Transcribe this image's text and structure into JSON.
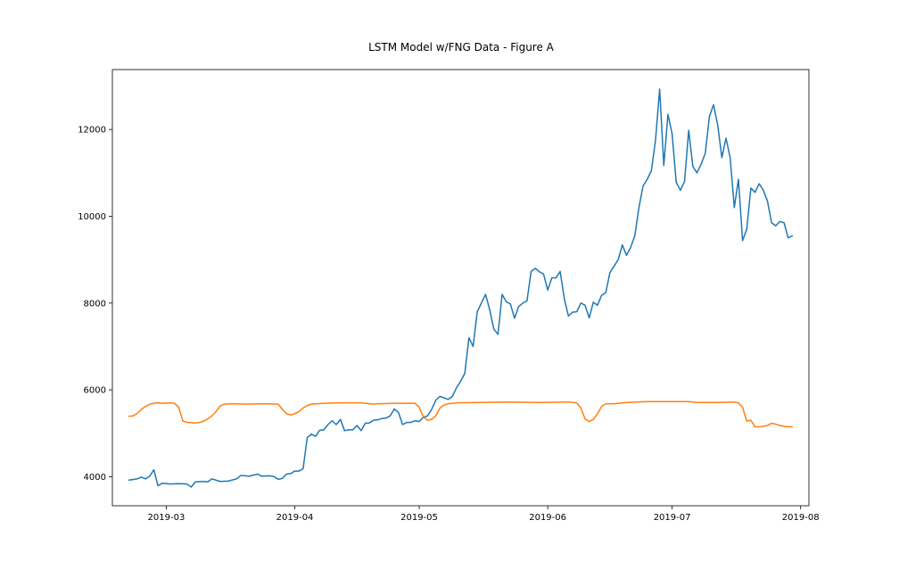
{
  "chart_data": {
    "type": "line",
    "title": "LSTM Model w/FNG Data - Figure A",
    "xlabel": "",
    "ylabel": "",
    "x_range": [
      "2019-02-16",
      "2019-08-03"
    ],
    "ylim": [
      3330,
      13380
    ],
    "x_ticks": [
      {
        "date": "2019-03-01",
        "label": "2019-03"
      },
      {
        "date": "2019-04-01",
        "label": "2019-04"
      },
      {
        "date": "2019-05-01",
        "label": "2019-05"
      },
      {
        "date": "2019-06-01",
        "label": "2019-06"
      },
      {
        "date": "2019-07-01",
        "label": "2019-07"
      },
      {
        "date": "2019-08-01",
        "label": "2019-08"
      }
    ],
    "y_ticks": [
      {
        "value": 4000,
        "label": "4000"
      },
      {
        "value": 6000,
        "label": "6000"
      },
      {
        "value": 8000,
        "label": "8000"
      },
      {
        "value": 10000,
        "label": "10000"
      },
      {
        "value": 12000,
        "label": "12000"
      }
    ],
    "grid": false,
    "legend": "none",
    "series": [
      {
        "color": "#1f77b4",
        "points": [
          [
            "2019-02-20",
            3920
          ],
          [
            "2019-02-22",
            3950
          ],
          [
            "2019-02-23",
            3990
          ],
          [
            "2019-02-24",
            3950
          ],
          [
            "2019-02-25",
            4010
          ],
          [
            "2019-02-26",
            4160
          ],
          [
            "2019-02-27",
            3790
          ],
          [
            "2019-02-28",
            3850
          ],
          [
            "2019-03-02",
            3830
          ],
          [
            "2019-03-04",
            3840
          ],
          [
            "2019-03-06",
            3830
          ],
          [
            "2019-03-07",
            3760
          ],
          [
            "2019-03-08",
            3880
          ],
          [
            "2019-03-10",
            3890
          ],
          [
            "2019-03-11",
            3880
          ],
          [
            "2019-03-12",
            3950
          ],
          [
            "2019-03-14",
            3890
          ],
          [
            "2019-03-16",
            3900
          ],
          [
            "2019-03-18",
            3950
          ],
          [
            "2019-03-19",
            4030
          ],
          [
            "2019-03-21",
            4010
          ],
          [
            "2019-03-23",
            4060
          ],
          [
            "2019-03-24",
            4010
          ],
          [
            "2019-03-26",
            4020
          ],
          [
            "2019-03-27",
            4000
          ],
          [
            "2019-03-28",
            3940
          ],
          [
            "2019-03-29",
            3960
          ],
          [
            "2019-03-30",
            4060
          ],
          [
            "2019-03-31",
            4070
          ],
          [
            "2019-04-01",
            4130
          ],
          [
            "2019-04-02",
            4130
          ],
          [
            "2019-04-03",
            4180
          ],
          [
            "2019-04-04",
            4900
          ],
          [
            "2019-04-05",
            4980
          ],
          [
            "2019-04-06",
            4930
          ],
          [
            "2019-04-07",
            5070
          ],
          [
            "2019-04-08",
            5080
          ],
          [
            "2019-04-09",
            5200
          ],
          [
            "2019-04-10",
            5290
          ],
          [
            "2019-04-11",
            5200
          ],
          [
            "2019-04-12",
            5320
          ],
          [
            "2019-04-13",
            5060
          ],
          [
            "2019-04-14",
            5080
          ],
          [
            "2019-04-15",
            5080
          ],
          [
            "2019-04-16",
            5180
          ],
          [
            "2019-04-17",
            5060
          ],
          [
            "2019-04-18",
            5230
          ],
          [
            "2019-04-19",
            5240
          ],
          [
            "2019-04-20",
            5300
          ],
          [
            "2019-04-21",
            5310
          ],
          [
            "2019-04-22",
            5340
          ],
          [
            "2019-04-23",
            5350
          ],
          [
            "2019-04-24",
            5400
          ],
          [
            "2019-04-25",
            5560
          ],
          [
            "2019-04-26",
            5480
          ],
          [
            "2019-04-27",
            5200
          ],
          [
            "2019-04-28",
            5250
          ],
          [
            "2019-04-29",
            5250
          ],
          [
            "2019-04-30",
            5290
          ],
          [
            "2019-05-01",
            5270
          ],
          [
            "2019-05-02",
            5370
          ],
          [
            "2019-05-03",
            5400
          ],
          [
            "2019-05-04",
            5550
          ],
          [
            "2019-05-05",
            5760
          ],
          [
            "2019-05-06",
            5850
          ],
          [
            "2019-05-08",
            5780
          ],
          [
            "2019-05-09",
            5850
          ],
          [
            "2019-05-10",
            6050
          ],
          [
            "2019-05-11",
            6200
          ],
          [
            "2019-05-12",
            6380
          ],
          [
            "2019-05-13",
            7200
          ],
          [
            "2019-05-14",
            7000
          ],
          [
            "2019-05-15",
            7800
          ],
          [
            "2019-05-16",
            8000
          ],
          [
            "2019-05-17",
            8200
          ],
          [
            "2019-05-18",
            7850
          ],
          [
            "2019-05-19",
            7400
          ],
          [
            "2019-05-20",
            7280
          ],
          [
            "2019-05-21",
            8200
          ],
          [
            "2019-05-22",
            8030
          ],
          [
            "2019-05-23",
            7980
          ],
          [
            "2019-05-24",
            7650
          ],
          [
            "2019-05-25",
            7920
          ],
          [
            "2019-05-26",
            8000
          ],
          [
            "2019-05-27",
            8050
          ],
          [
            "2019-05-28",
            8730
          ],
          [
            "2019-05-29",
            8800
          ],
          [
            "2019-05-30",
            8720
          ],
          [
            "2019-05-31",
            8670
          ],
          [
            "2019-06-01",
            8300
          ],
          [
            "2019-06-02",
            8580
          ],
          [
            "2019-06-03",
            8580
          ],
          [
            "2019-06-04",
            8730
          ],
          [
            "2019-06-05",
            8100
          ],
          [
            "2019-06-06",
            7700
          ],
          [
            "2019-06-07",
            7790
          ],
          [
            "2019-06-08",
            7800
          ],
          [
            "2019-06-09",
            8000
          ],
          [
            "2019-06-10",
            7950
          ],
          [
            "2019-06-11",
            7660
          ],
          [
            "2019-06-12",
            8020
          ],
          [
            "2019-06-13",
            7950
          ],
          [
            "2019-06-14",
            8180
          ],
          [
            "2019-06-15",
            8240
          ],
          [
            "2019-06-16",
            8700
          ],
          [
            "2019-06-17",
            8850
          ],
          [
            "2019-06-18",
            9000
          ],
          [
            "2019-06-19",
            9340
          ],
          [
            "2019-06-20",
            9100
          ],
          [
            "2019-06-21",
            9280
          ],
          [
            "2019-06-22",
            9550
          ],
          [
            "2019-06-23",
            10200
          ],
          [
            "2019-06-24",
            10700
          ],
          [
            "2019-06-25",
            10850
          ],
          [
            "2019-06-26",
            11050
          ],
          [
            "2019-06-27",
            11750
          ],
          [
            "2019-06-28",
            12930
          ],
          [
            "2019-06-29",
            11170
          ],
          [
            "2019-06-30",
            12350
          ],
          [
            "2019-07-01",
            11900
          ],
          [
            "2019-07-02",
            10780
          ],
          [
            "2019-07-03",
            10600
          ],
          [
            "2019-07-04",
            10800
          ],
          [
            "2019-07-05",
            11980
          ],
          [
            "2019-07-06",
            11150
          ],
          [
            "2019-07-07",
            11000
          ],
          [
            "2019-07-08",
            11200
          ],
          [
            "2019-07-09",
            11450
          ],
          [
            "2019-07-10",
            12300
          ],
          [
            "2019-07-11",
            12570
          ],
          [
            "2019-07-12",
            12100
          ],
          [
            "2019-07-13",
            11350
          ],
          [
            "2019-07-14",
            11800
          ],
          [
            "2019-07-15",
            11350
          ],
          [
            "2019-07-16",
            10200
          ],
          [
            "2019-07-17",
            10850
          ],
          [
            "2019-07-18",
            9440
          ],
          [
            "2019-07-19",
            9700
          ],
          [
            "2019-07-20",
            10650
          ],
          [
            "2019-07-21",
            10550
          ],
          [
            "2019-07-22",
            10750
          ],
          [
            "2019-07-23",
            10600
          ],
          [
            "2019-07-24",
            10350
          ],
          [
            "2019-07-25",
            9850
          ],
          [
            "2019-07-26",
            9780
          ],
          [
            "2019-07-27",
            9880
          ],
          [
            "2019-07-28",
            9850
          ],
          [
            "2019-07-29",
            9500
          ],
          [
            "2019-07-30",
            9550
          ]
        ]
      },
      {
        "color": "#ff7f0e",
        "points": [
          [
            "2019-02-20",
            5390
          ],
          [
            "2019-02-21",
            5400
          ],
          [
            "2019-02-22",
            5460
          ],
          [
            "2019-02-23",
            5550
          ],
          [
            "2019-02-24",
            5620
          ],
          [
            "2019-02-25",
            5670
          ],
          [
            "2019-02-26",
            5690
          ],
          [
            "2019-02-27",
            5700
          ],
          [
            "2019-02-28",
            5690
          ],
          [
            "2019-03-02",
            5700
          ],
          [
            "2019-03-03",
            5690
          ],
          [
            "2019-03-04",
            5600
          ],
          [
            "2019-03-05",
            5280
          ],
          [
            "2019-03-06",
            5250
          ],
          [
            "2019-03-08",
            5240
          ],
          [
            "2019-03-09",
            5250
          ],
          [
            "2019-03-10",
            5280
          ],
          [
            "2019-03-11",
            5330
          ],
          [
            "2019-03-12",
            5400
          ],
          [
            "2019-03-13",
            5500
          ],
          [
            "2019-03-14",
            5630
          ],
          [
            "2019-03-15",
            5670
          ],
          [
            "2019-03-17",
            5680
          ],
          [
            "2019-03-20",
            5670
          ],
          [
            "2019-03-25",
            5680
          ],
          [
            "2019-03-28",
            5670
          ],
          [
            "2019-03-29",
            5550
          ],
          [
            "2019-03-30",
            5450
          ],
          [
            "2019-03-31",
            5420
          ],
          [
            "2019-04-01",
            5450
          ],
          [
            "2019-04-02",
            5500
          ],
          [
            "2019-04-03",
            5580
          ],
          [
            "2019-04-04",
            5640
          ],
          [
            "2019-04-05",
            5670
          ],
          [
            "2019-04-08",
            5690
          ],
          [
            "2019-04-12",
            5700
          ],
          [
            "2019-04-17",
            5700
          ],
          [
            "2019-04-20",
            5670
          ],
          [
            "2019-04-21",
            5680
          ],
          [
            "2019-04-26",
            5690
          ],
          [
            "2019-04-30",
            5690
          ],
          [
            "2019-05-01",
            5600
          ],
          [
            "2019-05-02",
            5380
          ],
          [
            "2019-05-03",
            5300
          ],
          [
            "2019-05-04",
            5320
          ],
          [
            "2019-05-05",
            5400
          ],
          [
            "2019-05-06",
            5580
          ],
          [
            "2019-05-07",
            5650
          ],
          [
            "2019-05-08",
            5680
          ],
          [
            "2019-05-10",
            5700
          ],
          [
            "2019-05-15",
            5710
          ],
          [
            "2019-05-22",
            5720
          ],
          [
            "2019-05-30",
            5710
          ],
          [
            "2019-06-06",
            5720
          ],
          [
            "2019-06-08",
            5700
          ],
          [
            "2019-06-09",
            5580
          ],
          [
            "2019-06-10",
            5330
          ],
          [
            "2019-06-11",
            5270
          ],
          [
            "2019-06-12",
            5320
          ],
          [
            "2019-06-13",
            5450
          ],
          [
            "2019-06-14",
            5620
          ],
          [
            "2019-06-15",
            5680
          ],
          [
            "2019-06-17",
            5680
          ],
          [
            "2019-06-20",
            5710
          ],
          [
            "2019-06-25",
            5730
          ],
          [
            "2019-07-01",
            5730
          ],
          [
            "2019-07-05",
            5730
          ],
          [
            "2019-07-07",
            5710
          ],
          [
            "2019-07-12",
            5710
          ],
          [
            "2019-07-16",
            5720
          ],
          [
            "2019-07-17",
            5700
          ],
          [
            "2019-07-18",
            5600
          ],
          [
            "2019-07-19",
            5280
          ],
          [
            "2019-07-20",
            5300
          ],
          [
            "2019-07-21",
            5150
          ],
          [
            "2019-07-22",
            5150
          ],
          [
            "2019-07-23",
            5160
          ],
          [
            "2019-07-24",
            5180
          ],
          [
            "2019-07-25",
            5230
          ],
          [
            "2019-07-26",
            5210
          ],
          [
            "2019-07-27",
            5180
          ],
          [
            "2019-07-28",
            5160
          ],
          [
            "2019-07-29",
            5150
          ],
          [
            "2019-07-30",
            5150
          ]
        ]
      }
    ]
  }
}
